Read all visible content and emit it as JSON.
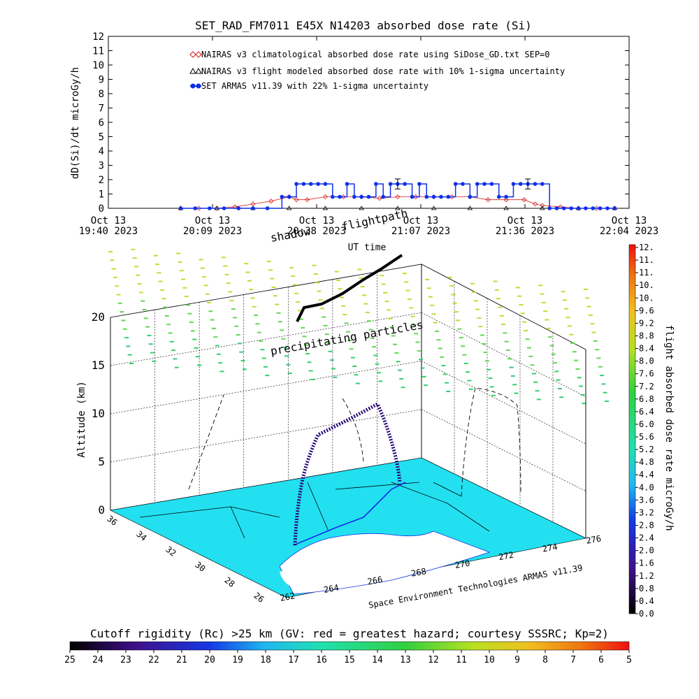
{
  "title": "SET_RAD_FM7011  E45X N14203 absorbed dose rate (Si)",
  "colors": {
    "nairas_clim": "#d62020",
    "nairas_flight": "#000000",
    "armas": "#1030e8",
    "ground": "#22e0f0",
    "particles": "#8adf30"
  },
  "chart_data": [
    {
      "type": "line",
      "title": "SET_RAD_FM7011  E45X N14203 absorbed dose rate (Si)",
      "xlabel": "UT time",
      "ylabel": "dD(Si)/dt microGy/h",
      "xlim": [
        "Oct 13 19:40 2023",
        "Oct 13 22:04 2023"
      ],
      "ylim": [
        0,
        12
      ],
      "yticks": [
        "0",
        "1",
        "2",
        "3",
        "4",
        "5",
        "6",
        "7",
        "8",
        "9",
        "10",
        "11",
        "12"
      ],
      "xticks": [
        {
          "top": "Oct 13",
          "bottom": "19:40 2023"
        },
        {
          "top": "Oct 13",
          "bottom": "20:09 2023"
        },
        {
          "top": "Oct 13",
          "bottom": "20:38 2023"
        },
        {
          "top": "Oct 13",
          "bottom": "21:07 2023"
        },
        {
          "top": "Oct 13",
          "bottom": "21:36 2023"
        },
        {
          "top": "Oct 13",
          "bottom": "22:04 2023"
        }
      ],
      "legend": [
        "NAIRAS v3 climatological absorbed dose rate using SiDose_GD.txt SEP=0",
        "NAIRAS v3 flight modeled absorbed dose rate with 10% 1-sigma uncertainty",
        "SET ARMAS v11.39 with 22% 1-sigma uncertainty"
      ],
      "series": [
        {
          "name": "NAIRAS v3 climatological absorbed dose rate using SiDose_GD.txt SEP=0",
          "x_min": [
            20,
            25,
            30,
            35,
            40,
            45,
            50,
            52,
            55,
            60,
            65,
            70,
            75,
            80,
            85,
            90,
            95,
            100,
            105,
            110,
            115,
            118,
            120,
            125,
            130,
            135,
            140
          ],
          "values": [
            0,
            0,
            0,
            0.1,
            0.3,
            0.5,
            0.8,
            0.6,
            0.6,
            0.8,
            0.8,
            0.8,
            0.7,
            0.8,
            0.8,
            0.8,
            0.8,
            0.8,
            0.6,
            0.6,
            0.6,
            0.3,
            0.2,
            0.1,
            0,
            0,
            0
          ]
        },
        {
          "name": "NAIRAS v3 flight modeled absorbed dose rate with 10% 1-sigma uncertainty",
          "x_min": [
            20,
            30,
            40,
            50,
            60,
            70,
            80,
            90,
            100,
            110,
            120,
            130,
            140
          ],
          "values": [
            0,
            0,
            0,
            0,
            0,
            0,
            0,
            0,
            0,
            0,
            0,
            0,
            0
          ]
        },
        {
          "name": "SET ARMAS v11.39 with 22% 1-sigma uncertainty",
          "x_min": [
            20,
            24,
            28,
            32,
            36,
            40,
            44,
            48,
            50,
            52,
            54,
            56,
            58,
            60,
            62,
            64,
            66,
            68,
            70,
            72,
            74,
            76,
            78,
            80,
            82,
            84,
            86,
            88,
            90,
            92,
            94,
            96,
            98,
            100,
            102,
            104,
            106,
            108,
            110,
            112,
            114,
            116,
            118,
            120,
            122,
            124,
            126,
            128,
            130,
            132,
            134,
            136,
            138,
            140
          ],
          "values": [
            0,
            0,
            0,
            0,
            0,
            0,
            0,
            0.8,
            0.8,
            1.7,
            1.7,
            1.7,
            1.7,
            1.7,
            0.8,
            0.8,
            1.7,
            0.8,
            0.8,
            0.8,
            1.7,
            0.8,
            1.7,
            1.7,
            1.7,
            0.8,
            1.7,
            0.8,
            0.8,
            0.8,
            0.8,
            1.7,
            1.7,
            0.8,
            1.7,
            1.7,
            1.7,
            0.8,
            0.8,
            1.7,
            1.7,
            1.7,
            1.7,
            1.7,
            0,
            0,
            0,
            0,
            0,
            0,
            0,
            0,
            0,
            0
          ]
        }
      ]
    },
    {
      "type": "scatter",
      "ylabel": "Altitude (km)",
      "zlim": [
        0,
        22
      ],
      "ticks_altitude": [
        "0",
        "5",
        "10",
        "15",
        "20"
      ],
      "ticks_longitude": [
        "262",
        "264",
        "266",
        "268",
        "270",
        "272",
        "274",
        "276"
      ],
      "ticks_latitude": [
        "26",
        "28",
        "30",
        "32",
        "34",
        "36"
      ],
      "annotations": [
        "shadow",
        "flightpath",
        "precipitating particles"
      ],
      "credit": "Space Environment Technologies ARMAS v11.39",
      "flight_track": [
        {
          "lon": 265.5,
          "lat": 30.0,
          "alt_km": 0.5
        },
        {
          "lon": 265.7,
          "lat": 31.0,
          "alt_km": 5.0
        },
        {
          "lon": 266.0,
          "lat": 32.5,
          "alt_km": 8.0
        },
        {
          "lon": 268.0,
          "lat": 33.5,
          "alt_km": 9.5
        },
        {
          "lon": 270.0,
          "lat": 34.0,
          "alt_km": 10.5
        },
        {
          "lon": 271.0,
          "lat": 33.0,
          "alt_km": 6.0
        },
        {
          "lon": 271.5,
          "lat": 32.0,
          "alt_km": 1.0
        }
      ]
    }
  ],
  "colorbar_right": {
    "label": "flight absorbed dose rate microGy/h",
    "ticks": [
      "0.0",
      "0.4",
      "0.8",
      "1.2",
      "1.6",
      "2.0",
      "2.4",
      "2.8",
      "3.2",
      "3.6",
      "4.0",
      "4.4",
      "4.8",
      "5.2",
      "5.6",
      "6.0",
      "6.4",
      "6.8",
      "7.2",
      "7.6",
      "8.0",
      "8.4",
      "8.8",
      "9.2",
      "9.6",
      "10.",
      "10.",
      "11.",
      "11.",
      "12."
    ]
  },
  "colorbar_bottom": {
    "title": "Cutoff rigidity (Rc) >25 km (GV: red = greatest hazard; courtesy SSSRC; Kp=2)",
    "ticks": [
      "25",
      "24",
      "23",
      "22",
      "21",
      "20",
      "19",
      "18",
      "17",
      "16",
      "15",
      "14",
      "13",
      "12",
      "11",
      "10",
      "9",
      "8",
      "7",
      "6",
      "5"
    ]
  }
}
